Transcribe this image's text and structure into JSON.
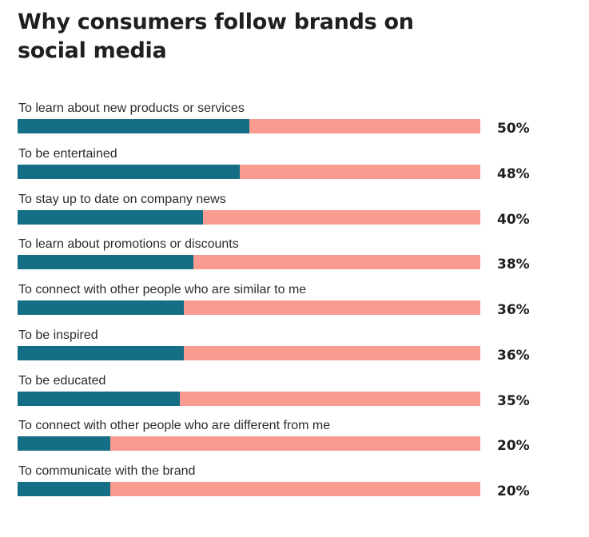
{
  "chart_data": {
    "type": "bar",
    "title": "Why consumers follow brands on social media",
    "orientation": "horizontal",
    "stacked_remainder": true,
    "xlim": [
      0,
      100
    ],
    "value_suffix": "%",
    "categories": [
      "To learn about new products or services",
      "To be entertained",
      "To stay up to date on company news",
      "To learn about promotions or discounts",
      "To connect with other people who are similar to me",
      "To be inspired",
      "To be educated",
      "To connect with other people who are different from me",
      "To communicate with the brand"
    ],
    "values": [
      50,
      48,
      40,
      38,
      36,
      36,
      35,
      20,
      20
    ],
    "value_labels": [
      "50%",
      "48%",
      "40%",
      "38%",
      "36%",
      "36%",
      "35%",
      "20%",
      "20%"
    ],
    "colors": {
      "fill": "#136e86",
      "remainder": "#f99b91",
      "text": "#1f1f1f"
    }
  }
}
